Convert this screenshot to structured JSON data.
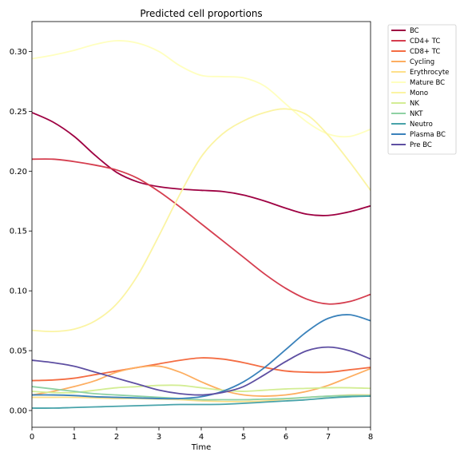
{
  "chart_data": {
    "type": "line",
    "title": "Predicted cell proportions",
    "xlabel": "Time",
    "ylabel": "",
    "xlim": [
      0,
      8
    ],
    "ylim": [
      -0.014,
      0.325
    ],
    "xticks": [
      0,
      1,
      2,
      3,
      4,
      5,
      6,
      7,
      8
    ],
    "xtick_labels": [
      "0",
      "1",
      "2",
      "3",
      "4",
      "5",
      "6",
      "7",
      "8"
    ],
    "yticks": [
      0.0,
      0.05,
      0.1,
      0.15,
      0.2,
      0.25,
      0.3
    ],
    "ytick_labels": [
      "0.00",
      "0.05",
      "0.10",
      "0.15",
      "0.20",
      "0.25",
      "0.30"
    ],
    "grid": false,
    "legend_position": "outside-top-right",
    "x": [
      0,
      0.5,
      1,
      1.5,
      2,
      2.5,
      3,
      3.5,
      4,
      4.5,
      5,
      5.5,
      6,
      6.5,
      7,
      7.5,
      8
    ],
    "series": [
      {
        "name": "BC",
        "color": "#9e0142",
        "values": [
          0.249,
          0.241,
          0.229,
          0.213,
          0.199,
          0.191,
          0.187,
          0.185,
          0.184,
          0.183,
          0.18,
          0.175,
          0.169,
          0.164,
          0.163,
          0.166,
          0.171
        ]
      },
      {
        "name": "CD4+ TC",
        "color": "#d53e4f",
        "values": [
          0.21,
          0.21,
          0.208,
          0.205,
          0.201,
          0.194,
          0.183,
          0.17,
          0.156,
          0.142,
          0.128,
          0.114,
          0.102,
          0.093,
          0.089,
          0.091,
          0.097
        ]
      },
      {
        "name": "CD8+ TC",
        "color": "#f46d43",
        "values": [
          0.025,
          0.0255,
          0.027,
          0.03,
          0.033,
          0.036,
          0.039,
          0.042,
          0.044,
          0.043,
          0.04,
          0.036,
          0.033,
          0.032,
          0.032,
          0.034,
          0.036
        ]
      },
      {
        "name": "Cycling",
        "color": "#fdae61",
        "values": [
          0.013,
          0.016,
          0.02,
          0.025,
          0.032,
          0.036,
          0.037,
          0.032,
          0.024,
          0.017,
          0.013,
          0.012,
          0.013,
          0.016,
          0.021,
          0.028,
          0.035
        ]
      },
      {
        "name": "Erythrocyte",
        "color": "#fee08b",
        "values": [
          0.011,
          0.011,
          0.011,
          0.0105,
          0.01,
          0.01,
          0.0095,
          0.009,
          0.008,
          0.0075,
          0.0075,
          0.008,
          0.0095,
          0.011,
          0.012,
          0.013,
          0.013
        ]
      },
      {
        "name": "Mature BC",
        "color": "#ffffbf",
        "values": [
          0.294,
          0.297,
          0.301,
          0.306,
          0.309,
          0.307,
          0.3,
          0.288,
          0.28,
          0.279,
          0.278,
          0.271,
          0.256,
          0.241,
          0.231,
          0.229,
          0.235
        ]
      },
      {
        "name": "Mono",
        "color": "#fbf4a3",
        "values": [
          0.067,
          0.066,
          0.068,
          0.075,
          0.089,
          0.113,
          0.146,
          0.181,
          0.212,
          0.231,
          0.242,
          0.249,
          0.252,
          0.247,
          0.23,
          0.208,
          0.184
        ]
      },
      {
        "name": "NK",
        "color": "#d3ed94",
        "values": [
          0.016,
          0.015,
          0.015,
          0.017,
          0.019,
          0.02,
          0.021,
          0.021,
          0.019,
          0.017,
          0.016,
          0.017,
          0.018,
          0.0185,
          0.019,
          0.019,
          0.0185
        ]
      },
      {
        "name": "NKT",
        "color": "#8fd1a4",
        "values": [
          0.02,
          0.018,
          0.016,
          0.014,
          0.013,
          0.012,
          0.011,
          0.01,
          0.009,
          0.009,
          0.009,
          0.0095,
          0.01,
          0.011,
          0.012,
          0.0125,
          0.0125
        ]
      },
      {
        "name": "Neutro",
        "color": "#48a3aa",
        "values": [
          0.002,
          0.002,
          0.0025,
          0.003,
          0.0035,
          0.004,
          0.0045,
          0.005,
          0.005,
          0.0052,
          0.006,
          0.007,
          0.008,
          0.009,
          0.0105,
          0.0115,
          0.012
        ]
      },
      {
        "name": "Plasma BC",
        "color": "#3a82bb",
        "values": [
          0.013,
          0.013,
          0.0125,
          0.0115,
          0.011,
          0.0105,
          0.01,
          0.01,
          0.0115,
          0.016,
          0.024,
          0.036,
          0.051,
          0.066,
          0.077,
          0.08,
          0.075
        ]
      },
      {
        "name": "Pre BC",
        "color": "#5e4fa2",
        "values": [
          0.042,
          0.04,
          0.037,
          0.032,
          0.027,
          0.022,
          0.017,
          0.014,
          0.013,
          0.015,
          0.02,
          0.03,
          0.041,
          0.05,
          0.053,
          0.05,
          0.043
        ]
      }
    ]
  }
}
